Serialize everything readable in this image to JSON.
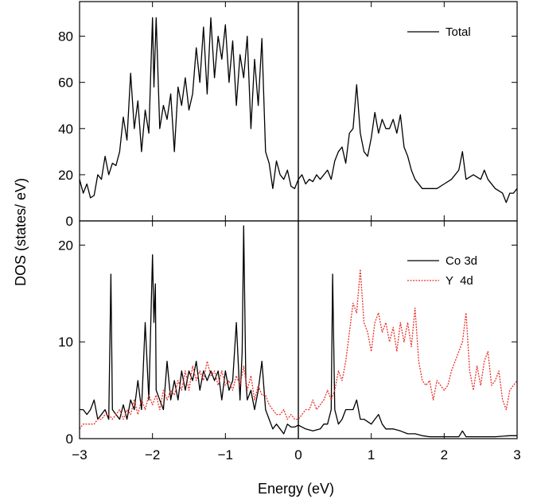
{
  "figure": {
    "xlabel": "Energy (eV)",
    "ylabel": "DOS (states/ eV)"
  },
  "chart_data": [
    {
      "type": "line",
      "panel": "top",
      "xlim": [
        -3,
        3
      ],
      "ylim": [
        0,
        95
      ],
      "xticks": [
        -3,
        -2,
        -1,
        0,
        1,
        2,
        3
      ],
      "yticks": [
        0,
        20,
        40,
        60,
        80
      ],
      "legend_position": "top-right",
      "fermi_line_x": 0,
      "series": [
        {
          "name": "Total",
          "color": "#000000",
          "dash": "solid",
          "x": [
            -3.0,
            -2.95,
            -2.9,
            -2.85,
            -2.8,
            -2.75,
            -2.7,
            -2.65,
            -2.6,
            -2.55,
            -2.5,
            -2.45,
            -2.4,
            -2.35,
            -2.3,
            -2.25,
            -2.2,
            -2.15,
            -2.1,
            -2.05,
            -2.0,
            -1.98,
            -1.95,
            -1.9,
            -1.85,
            -1.8,
            -1.75,
            -1.7,
            -1.65,
            -1.6,
            -1.55,
            -1.5,
            -1.45,
            -1.4,
            -1.35,
            -1.3,
            -1.25,
            -1.2,
            -1.15,
            -1.1,
            -1.05,
            -1.0,
            -0.95,
            -0.9,
            -0.85,
            -0.8,
            -0.75,
            -0.7,
            -0.65,
            -0.6,
            -0.55,
            -0.5,
            -0.45,
            -0.4,
            -0.35,
            -0.3,
            -0.25,
            -0.2,
            -0.15,
            -0.1,
            -0.05,
            0.0,
            0.05,
            0.1,
            0.15,
            0.2,
            0.25,
            0.3,
            0.35,
            0.4,
            0.45,
            0.5,
            0.55,
            0.6,
            0.65,
            0.7,
            0.75,
            0.8,
            0.85,
            0.9,
            0.95,
            1.0,
            1.05,
            1.1,
            1.15,
            1.2,
            1.25,
            1.3,
            1.35,
            1.4,
            1.45,
            1.5,
            1.55,
            1.6,
            1.7,
            1.8,
            1.9,
            2.0,
            2.1,
            2.2,
            2.25,
            2.3,
            2.4,
            2.5,
            2.55,
            2.6,
            2.7,
            2.8,
            2.85,
            2.9,
            2.95,
            3.0
          ],
          "y": [
            18,
            12,
            16,
            10,
            11,
            20,
            18,
            28,
            20,
            25,
            24,
            30,
            45,
            35,
            64,
            40,
            52,
            30,
            48,
            38,
            88,
            58,
            88,
            40,
            50,
            44,
            55,
            30,
            58,
            50,
            62,
            48,
            55,
            75,
            60,
            84,
            55,
            88,
            62,
            80,
            70,
            85,
            60,
            78,
            50,
            72,
            62,
            80,
            40,
            70,
            50,
            79,
            30,
            25,
            14,
            26,
            20,
            18,
            22,
            15,
            14,
            18,
            20,
            16,
            18,
            17,
            20,
            18,
            20,
            22,
            18,
            26,
            30,
            32,
            25,
            38,
            40,
            59,
            38,
            30,
            28,
            36,
            47,
            38,
            44,
            40,
            40,
            44,
            38,
            46,
            32,
            28,
            22,
            18,
            14,
            14,
            14,
            16,
            18,
            22,
            30,
            18,
            20,
            18,
            22,
            18,
            14,
            12,
            8,
            12,
            12,
            14
          ]
        }
      ]
    },
    {
      "type": "line",
      "panel": "bottom",
      "xlim": [
        -3,
        3
      ],
      "ylim": [
        0,
        22.5
      ],
      "xticks": [
        -3,
        -2,
        -1,
        0,
        1,
        2,
        3
      ],
      "xtick_labels": [
        "−3",
        "−2",
        "−1",
        "0",
        "1",
        "2",
        "3"
      ],
      "yticks": [
        0,
        10,
        20
      ],
      "legend_position": "top-right",
      "fermi_line_x": 0,
      "series": [
        {
          "name": "Co 3d",
          "color": "#000000",
          "dash": "solid",
          "x": [
            -3.0,
            -2.95,
            -2.9,
            -2.85,
            -2.8,
            -2.75,
            -2.7,
            -2.65,
            -2.6,
            -2.57,
            -2.55,
            -2.5,
            -2.45,
            -2.4,
            -2.35,
            -2.3,
            -2.25,
            -2.2,
            -2.15,
            -2.1,
            -2.05,
            -2.0,
            -1.98,
            -1.96,
            -1.95,
            -1.9,
            -1.85,
            -1.8,
            -1.75,
            -1.7,
            -1.65,
            -1.6,
            -1.55,
            -1.5,
            -1.45,
            -1.4,
            -1.35,
            -1.3,
            -1.25,
            -1.2,
            -1.15,
            -1.1,
            -1.05,
            -1.0,
            -0.95,
            -0.9,
            -0.85,
            -0.8,
            -0.77,
            -0.75,
            -0.72,
            -0.7,
            -0.65,
            -0.6,
            -0.55,
            -0.5,
            -0.45,
            -0.4,
            -0.35,
            -0.3,
            -0.25,
            -0.2,
            -0.15,
            -0.1,
            -0.05,
            0.0,
            0.05,
            0.1,
            0.2,
            0.3,
            0.35,
            0.4,
            0.45,
            0.47,
            0.5,
            0.55,
            0.6,
            0.65,
            0.7,
            0.75,
            0.8,
            0.85,
            0.9,
            1.0,
            1.05,
            1.1,
            1.15,
            1.2,
            1.3,
            1.4,
            1.5,
            1.6,
            1.7,
            1.8,
            1.9,
            2.0,
            2.2,
            2.25,
            2.3,
            2.5,
            2.7,
            2.9,
            3.0
          ],
          "y": [
            3,
            3,
            2.5,
            3,
            4,
            2,
            2.5,
            3,
            2,
            17,
            3,
            2.5,
            2,
            3.5,
            2,
            4,
            3,
            6,
            3,
            12,
            4,
            19,
            12,
            16,
            5,
            4,
            3,
            8,
            4,
            6,
            4,
            7,
            5,
            7,
            6,
            8,
            5,
            7,
            6,
            7,
            6,
            7,
            4,
            7,
            5,
            6,
            12,
            4,
            9,
            22,
            6,
            4,
            5,
            3,
            5,
            8,
            3,
            2,
            1,
            1.5,
            1,
            0.5,
            1.5,
            1.2,
            1.2,
            1.4,
            1.2,
            1,
            0.8,
            1,
            1.5,
            1.5,
            3,
            17,
            3,
            1.5,
            2,
            3,
            3,
            3,
            4,
            2,
            2,
            1.5,
            2,
            2.5,
            1.5,
            1,
            1,
            0.8,
            0.5,
            0.5,
            0.3,
            0.2,
            0.2,
            0.2,
            0.2,
            0.8,
            0.2,
            0.2,
            0.2,
            0.3,
            0.3
          ]
        },
        {
          "name": "Y  4d",
          "color": "#e8312a",
          "dash": "dotted",
          "x": [
            -3.0,
            -2.95,
            -2.9,
            -2.85,
            -2.8,
            -2.75,
            -2.7,
            -2.65,
            -2.6,
            -2.55,
            -2.5,
            -2.45,
            -2.4,
            -2.35,
            -2.3,
            -2.25,
            -2.2,
            -2.15,
            -2.1,
            -2.05,
            -2.0,
            -1.95,
            -1.9,
            -1.85,
            -1.8,
            -1.75,
            -1.7,
            -1.65,
            -1.6,
            -1.55,
            -1.5,
            -1.45,
            -1.4,
            -1.35,
            -1.3,
            -1.25,
            -1.2,
            -1.15,
            -1.1,
            -1.05,
            -1.0,
            -0.95,
            -0.9,
            -0.85,
            -0.8,
            -0.75,
            -0.7,
            -0.65,
            -0.6,
            -0.55,
            -0.5,
            -0.45,
            -0.4,
            -0.35,
            -0.3,
            -0.25,
            -0.2,
            -0.15,
            -0.1,
            -0.05,
            0.0,
            0.05,
            0.1,
            0.15,
            0.2,
            0.25,
            0.3,
            0.35,
            0.4,
            0.45,
            0.5,
            0.55,
            0.6,
            0.65,
            0.7,
            0.75,
            0.8,
            0.85,
            0.9,
            0.95,
            1.0,
            1.05,
            1.1,
            1.15,
            1.2,
            1.25,
            1.3,
            1.35,
            1.4,
            1.45,
            1.5,
            1.55,
            1.6,
            1.65,
            1.7,
            1.75,
            1.8,
            1.85,
            1.9,
            1.95,
            2.0,
            2.05,
            2.1,
            2.15,
            2.2,
            2.25,
            2.3,
            2.35,
            2.4,
            2.45,
            2.5,
            2.55,
            2.6,
            2.65,
            2.7,
            2.75,
            2.8,
            2.85,
            2.9,
            2.95,
            3.0
          ],
          "y": [
            1,
            1.5,
            1.5,
            1.5,
            1.5,
            2,
            2,
            2.5,
            2.5,
            2,
            2.5,
            3,
            2,
            3,
            2.5,
            4,
            2.5,
            4,
            3,
            4.5,
            3.5,
            4.5,
            3,
            5,
            4,
            5,
            4.5,
            6,
            5,
            7,
            5,
            7.5,
            6,
            7,
            6,
            8,
            6.5,
            7,
            5.5,
            7,
            5.5,
            6,
            5,
            6.5,
            5.5,
            7.5,
            5,
            6.5,
            4,
            5.5,
            4.5,
            4.5,
            3.5,
            3,
            2.5,
            2.5,
            3,
            2,
            2.5,
            2,
            2,
            2.5,
            3,
            3,
            4,
            3,
            3.5,
            4,
            5,
            4,
            5,
            7,
            6,
            8,
            11,
            14,
            13,
            17.5,
            12,
            11,
            9,
            12,
            13,
            11,
            12,
            10,
            11.5,
            9,
            12,
            10,
            12,
            9.5,
            13.5,
            8,
            6,
            5.5,
            6,
            4,
            6,
            5.5,
            5,
            5.5,
            7,
            8,
            9,
            10,
            13,
            7,
            5,
            7.5,
            5.5,
            8,
            9,
            5.5,
            6,
            7,
            4,
            3,
            5,
            5.5,
            6
          ]
        }
      ]
    }
  ]
}
